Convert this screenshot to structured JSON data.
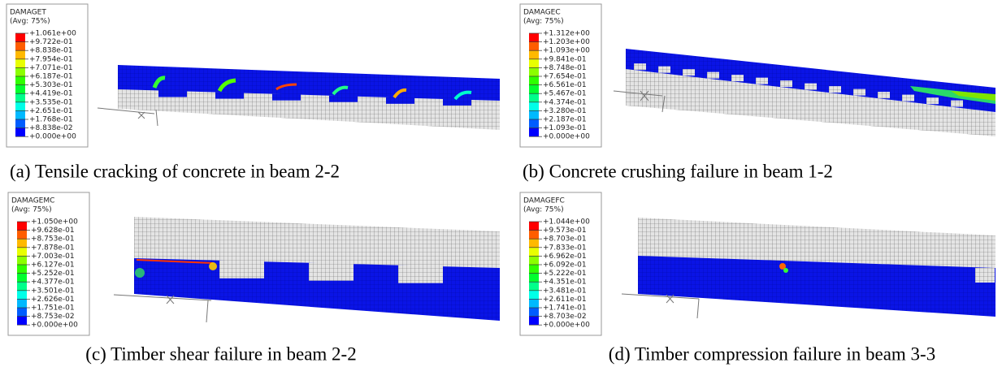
{
  "panels": [
    {
      "legend": {
        "title": "DAMAGET",
        "subtitle": "(Avg: 75%)",
        "values": [
          "+1.061e+00",
          "+9.722e-01",
          "+8.838e-01",
          "+7.954e-01",
          "+7.071e-01",
          "+6.187e-01",
          "+5.303e-01",
          "+4.419e-01",
          "+3.535e-01",
          "+2.651e-01",
          "+1.768e-01",
          "+8.838e-02",
          "+0.000e+00"
        ]
      },
      "caption": "(a)  Tensile cracking of concrete in beam 2-2"
    },
    {
      "legend": {
        "title": "DAMAGEC",
        "subtitle": "(Avg: 75%)",
        "values": [
          "+1.312e+00",
          "+1.203e+00",
          "+1.093e+00",
          "+9.841e-01",
          "+8.748e-01",
          "+7.654e-01",
          "+6.561e-01",
          "+5.467e-01",
          "+4.374e-01",
          "+3.280e-01",
          "+2.187e-01",
          "+1.093e-01",
          "+0.000e+00"
        ]
      },
      "caption": "(b)  Concrete crushing failure in beam 1-2"
    },
    {
      "legend": {
        "title": "DAMAGEMC",
        "subtitle": "(Avg: 75%)",
        "values": [
          "+1.050e+00",
          "+9.628e-01",
          "+8.753e-01",
          "+7.878e-01",
          "+7.003e-01",
          "+6.127e-01",
          "+5.252e-01",
          "+4.377e-01",
          "+3.501e-01",
          "+2.626e-01",
          "+1.751e-01",
          "+8.753e-02",
          "+0.000e+00"
        ]
      },
      "caption": "(c)  Timber shear failure in beam 2-2"
    },
    {
      "legend": {
        "title": "DAMAGEFC",
        "subtitle": "(Avg: 75%)",
        "values": [
          "+1.044e+00",
          "+9.573e-01",
          "+8.703e-01",
          "+7.833e-01",
          "+6.962e-01",
          "+6.092e-01",
          "+5.222e-01",
          "+4.351e-01",
          "+3.481e-01",
          "+2.611e-01",
          "+1.741e-01",
          "+8.703e-02",
          "+0.000e+00"
        ]
      },
      "caption": "(d)  Timber compression failure in beam 3-3"
    }
  ]
}
